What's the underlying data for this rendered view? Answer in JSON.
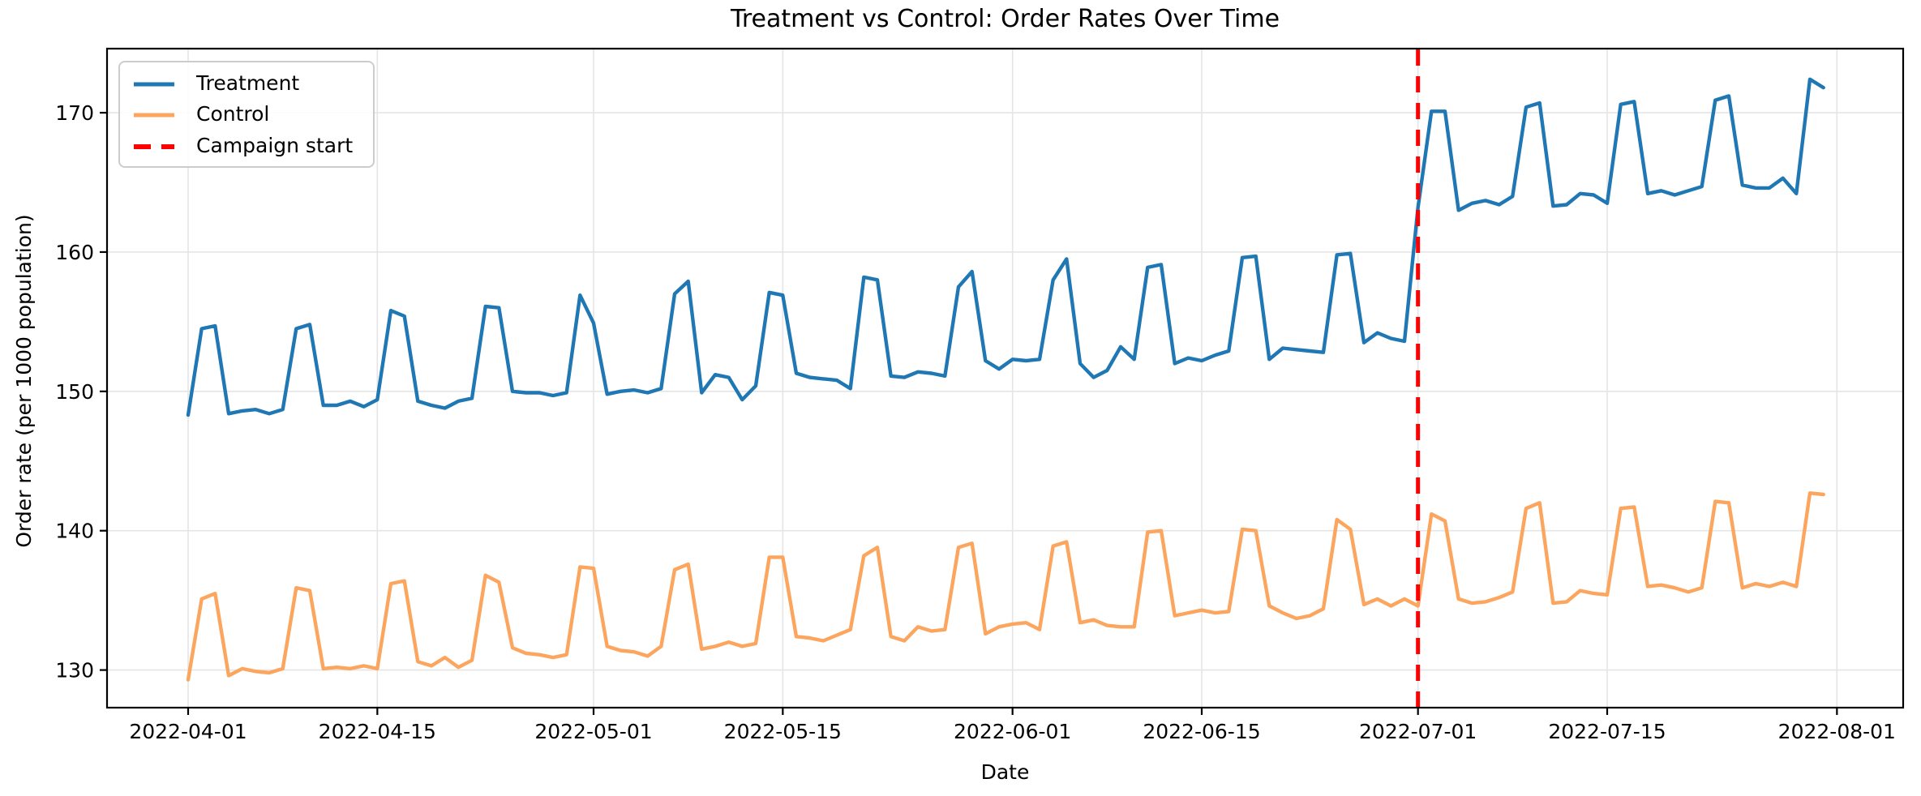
{
  "figure": {
    "title": "Treatment vs Control: Order Rates Over Time",
    "xlabel": "Date",
    "ylabel": "Order rate (per 1000 population)",
    "background_color": "#ffffff",
    "grid_color": "#e5e5e5",
    "spine_color": "#000000"
  },
  "legend": {
    "position": "upper left",
    "items": [
      {
        "label": "Treatment",
        "color": "#1f77b4",
        "style": "solid"
      },
      {
        "label": "Control",
        "color": "#fca55e",
        "style": "solid"
      },
      {
        "label": "Campaign start",
        "color": "#ff0000",
        "style": "dashed"
      }
    ]
  },
  "chart_data": {
    "type": "line",
    "title": "Treatment vs Control: Order Rates Over Time",
    "xlabel": "Date",
    "ylabel": "Order rate (per 1000 population)",
    "x_unit": "day",
    "x_start_date": "2022-04-01",
    "x_end_date": "2022-07-31",
    "n_points": 122,
    "grid": true,
    "legend_position": "upper left",
    "xlim_days": [
      -6,
      126.9
    ],
    "ylim": [
      127.3,
      174.6
    ],
    "y_ticks": [
      130,
      140,
      150,
      160,
      170
    ],
    "x_ticks": [
      {
        "label": "2022-04-01",
        "day": 0
      },
      {
        "label": "2022-04-15",
        "day": 14
      },
      {
        "label": "2022-05-01",
        "day": 30
      },
      {
        "label": "2022-05-15",
        "day": 44
      },
      {
        "label": "2022-06-01",
        "day": 61
      },
      {
        "label": "2022-06-15",
        "day": 75
      },
      {
        "label": "2022-07-01",
        "day": 91
      },
      {
        "label": "2022-07-15",
        "day": 105
      },
      {
        "label": "2022-08-01",
        "day": 122
      }
    ],
    "campaign_start": {
      "label": "Campaign start",
      "date": "2022-07-01",
      "day_index": 91,
      "color": "#ff0000",
      "line_style": "dashed"
    },
    "series": [
      {
        "name": "Treatment",
        "color": "#1f77b4",
        "values": [
          148.3,
          154.5,
          154.7,
          148.4,
          148.6,
          148.7,
          148.4,
          148.7,
          154.5,
          154.8,
          149.0,
          149.0,
          149.3,
          148.9,
          149.4,
          155.8,
          155.4,
          149.3,
          149.0,
          148.8,
          149.3,
          149.5,
          156.1,
          156.0,
          150.0,
          149.9,
          149.9,
          149.7,
          149.9,
          156.9,
          154.9,
          149.8,
          150.0,
          150.1,
          149.9,
          150.2,
          157.0,
          157.9,
          149.9,
          151.2,
          151.0,
          149.4,
          150.4,
          157.1,
          156.9,
          151.3,
          151.0,
          150.9,
          150.8,
          150.2,
          158.2,
          158.0,
          151.1,
          151.0,
          151.4,
          151.3,
          151.1,
          157.5,
          158.6,
          152.2,
          151.6,
          152.3,
          152.2,
          152.3,
          158.0,
          159.5,
          152.0,
          151.0,
          151.5,
          153.2,
          152.3,
          158.9,
          159.1,
          152.0,
          152.4,
          152.2,
          152.6,
          152.9,
          159.6,
          159.7,
          152.3,
          153.1,
          153.0,
          152.9,
          152.8,
          159.8,
          159.9,
          153.5,
          154.2,
          153.8,
          153.6,
          163.2,
          170.1,
          170.1,
          163.0,
          163.5,
          163.7,
          163.4,
          164.0,
          170.4,
          170.7,
          163.3,
          163.4,
          164.2,
          164.1,
          163.5,
          170.6,
          170.8,
          164.2,
          164.4,
          164.1,
          164.4,
          164.7,
          170.9,
          171.2,
          164.8,
          164.6,
          164.6,
          165.3,
          164.2,
          172.4,
          171.8
        ]
      },
      {
        "name": "Control",
        "color": "#fca55e",
        "values": [
          129.3,
          135.1,
          135.5,
          129.6,
          130.1,
          129.9,
          129.8,
          130.1,
          135.9,
          135.7,
          130.1,
          130.2,
          130.1,
          130.3,
          130.1,
          136.2,
          136.4,
          130.6,
          130.3,
          130.9,
          130.2,
          130.7,
          136.8,
          136.3,
          131.6,
          131.2,
          131.1,
          130.9,
          131.1,
          137.4,
          137.3,
          131.7,
          131.4,
          131.3,
          131.0,
          131.7,
          137.2,
          137.6,
          131.5,
          131.7,
          132.0,
          131.7,
          131.9,
          138.1,
          138.1,
          132.4,
          132.3,
          132.1,
          132.5,
          132.9,
          138.2,
          138.8,
          132.4,
          132.1,
          133.1,
          132.8,
          132.9,
          138.8,
          139.1,
          132.6,
          133.1,
          133.3,
          133.4,
          132.9,
          138.9,
          139.2,
          133.4,
          133.6,
          133.2,
          133.1,
          133.1,
          139.9,
          140.0,
          133.9,
          134.1,
          134.3,
          134.1,
          134.2,
          140.1,
          140.0,
          134.6,
          134.1,
          133.7,
          133.9,
          134.4,
          140.8,
          140.1,
          134.7,
          135.1,
          134.6,
          135.1,
          134.6,
          141.2,
          140.7,
          135.1,
          134.8,
          134.9,
          135.2,
          135.6,
          141.6,
          142.0,
          134.8,
          134.9,
          135.7,
          135.5,
          135.4,
          141.6,
          141.7,
          136.0,
          136.1,
          135.9,
          135.6,
          135.9,
          142.1,
          142.0,
          135.9,
          136.2,
          136.0,
          136.3,
          136.0,
          142.7,
          142.6
        ]
      }
    ]
  }
}
